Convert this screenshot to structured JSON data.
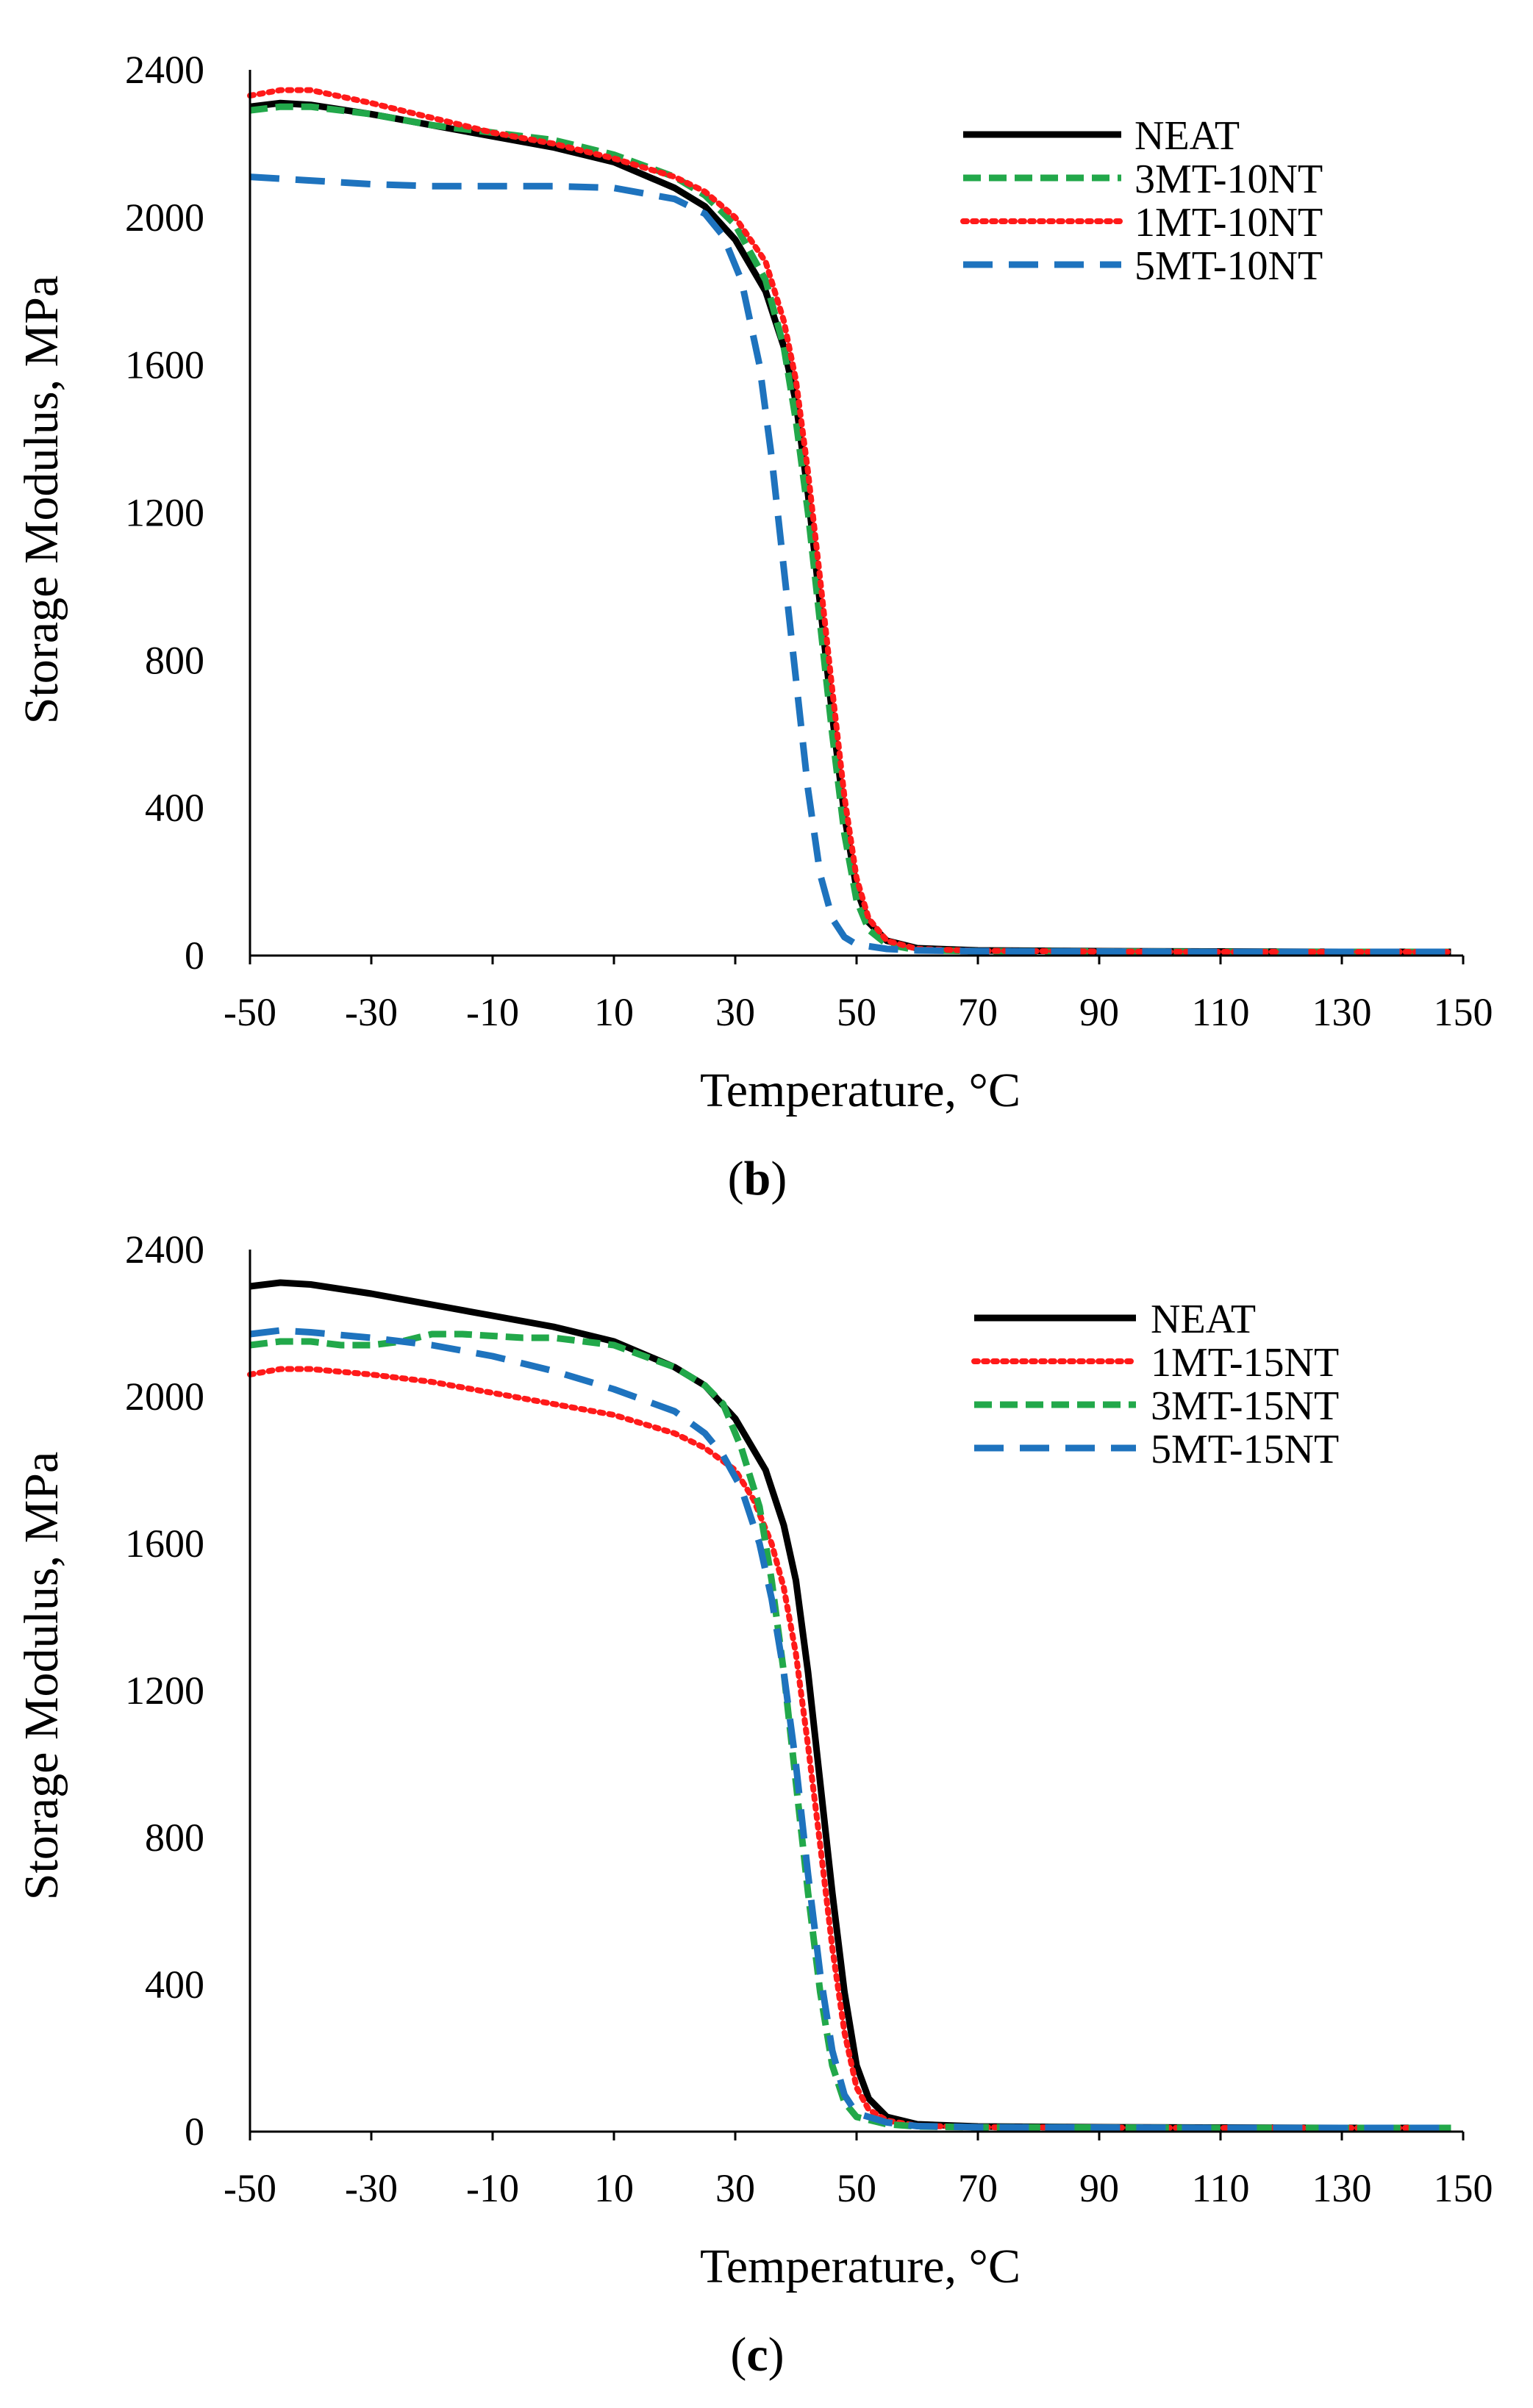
{
  "chart_data": [
    {
      "type": "line",
      "id": "b",
      "caption": {
        "open": "(",
        "letter": "b",
        "close": ")"
      },
      "xlabel": "Temperature, °C",
      "ylabel": "Storage Modulus, MPa",
      "xlim": [
        -50,
        150
      ],
      "ylim": [
        0,
        2400
      ],
      "xticks": [
        "-50",
        "-30",
        "-10",
        "10",
        "30",
        "50",
        "70",
        "90",
        "110",
        "130",
        "150"
      ],
      "yticks": [
        "0",
        "400",
        "800",
        "1200",
        "1600",
        "2000",
        "2400"
      ],
      "grid": false,
      "legend_position": "top-right",
      "series": [
        {
          "name": "NEAT",
          "color": "#000000",
          "style": "solid",
          "points": [
            [
              -50,
              2300
            ],
            [
              -45,
              2310
            ],
            [
              -40,
              2305
            ],
            [
              -30,
              2280
            ],
            [
              -20,
              2250
            ],
            [
              -10,
              2220
            ],
            [
              0,
              2190
            ],
            [
              10,
              2150
            ],
            [
              20,
              2080
            ],
            [
              25,
              2030
            ],
            [
              30,
              1940
            ],
            [
              35,
              1800
            ],
            [
              38,
              1650
            ],
            [
              40,
              1500
            ],
            [
              42,
              1250
            ],
            [
              44,
              950
            ],
            [
              46,
              650
            ],
            [
              48,
              380
            ],
            [
              50,
              180
            ],
            [
              52,
              90
            ],
            [
              55,
              40
            ],
            [
              60,
              20
            ],
            [
              70,
              14
            ],
            [
              90,
              12
            ],
            [
              110,
              11
            ],
            [
              130,
              10
            ],
            [
              148,
              10
            ]
          ]
        },
        {
          "name": "3MT-10NT",
          "color": "#22A84A",
          "style": "dashed",
          "points": [
            [
              -50,
              2290
            ],
            [
              -45,
              2300
            ],
            [
              -40,
              2300
            ],
            [
              -30,
              2280
            ],
            [
              -20,
              2250
            ],
            [
              -10,
              2230
            ],
            [
              0,
              2210
            ],
            [
              10,
              2170
            ],
            [
              20,
              2110
            ],
            [
              25,
              2060
            ],
            [
              30,
              1980
            ],
            [
              35,
              1830
            ],
            [
              38,
              1650
            ],
            [
              40,
              1450
            ],
            [
              42,
              1200
            ],
            [
              44,
              900
            ],
            [
              46,
              600
            ],
            [
              48,
              330
            ],
            [
              50,
              150
            ],
            [
              52,
              70
            ],
            [
              55,
              30
            ],
            [
              60,
              15
            ],
            [
              70,
              12
            ],
            [
              90,
              11
            ],
            [
              110,
              10
            ],
            [
              130,
              10
            ],
            [
              148,
              10
            ]
          ]
        },
        {
          "name": "1MT-10NT",
          "color": "#FF1A1A",
          "style": "dotted",
          "points": [
            [
              -50,
              2330
            ],
            [
              -45,
              2345
            ],
            [
              -40,
              2345
            ],
            [
              -30,
              2310
            ],
            [
              -20,
              2270
            ],
            [
              -10,
              2230
            ],
            [
              0,
              2200
            ],
            [
              10,
              2160
            ],
            [
              20,
              2110
            ],
            [
              25,
              2070
            ],
            [
              30,
              2000
            ],
            [
              35,
              1880
            ],
            [
              38,
              1720
            ],
            [
              40,
              1560
            ],
            [
              42,
              1310
            ],
            [
              44,
              1020
            ],
            [
              46,
              720
            ],
            [
              48,
              430
            ],
            [
              50,
              210
            ],
            [
              52,
              100
            ],
            [
              55,
              40
            ],
            [
              60,
              18
            ],
            [
              70,
              13
            ],
            [
              90,
              11
            ],
            [
              110,
              10
            ],
            [
              130,
              10
            ],
            [
              148,
              10
            ]
          ]
        },
        {
          "name": "5MT-10NT",
          "color": "#1E73BE",
          "style": "longdash",
          "points": [
            [
              -50,
              2110
            ],
            [
              -45,
              2105
            ],
            [
              -40,
              2100
            ],
            [
              -30,
              2090
            ],
            [
              -20,
              2085
            ],
            [
              -10,
              2085
            ],
            [
              0,
              2085
            ],
            [
              10,
              2080
            ],
            [
              20,
              2050
            ],
            [
              25,
              2010
            ],
            [
              28,
              1950
            ],
            [
              31,
              1830
            ],
            [
              34,
              1600
            ],
            [
              36,
              1350
            ],
            [
              38,
              1050
            ],
            [
              40,
              750
            ],
            [
              42,
              450
            ],
            [
              44,
              220
            ],
            [
              46,
              100
            ],
            [
              48,
              50
            ],
            [
              50,
              30
            ],
            [
              55,
              18
            ],
            [
              60,
              14
            ],
            [
              70,
              12
            ],
            [
              90,
              11
            ],
            [
              110,
              10
            ],
            [
              130,
              10
            ],
            [
              148,
              10
            ]
          ]
        }
      ]
    },
    {
      "type": "line",
      "id": "c",
      "caption": {
        "open": "(",
        "letter": "c",
        "close": ")"
      },
      "xlabel": "Temperature, °C",
      "ylabel": "Storage Modulus, MPa",
      "xlim": [
        -50,
        150
      ],
      "ylim": [
        0,
        2400
      ],
      "xticks": [
        "-50",
        "-30",
        "-10",
        "10",
        "30",
        "50",
        "70",
        "90",
        "110",
        "130",
        "150"
      ],
      "yticks": [
        "0",
        "400",
        "800",
        "1200",
        "1600",
        "2000",
        "2400"
      ],
      "grid": false,
      "legend_position": "top-right",
      "series": [
        {
          "name": "NEAT",
          "color": "#000000",
          "style": "solid",
          "points": [
            [
              -50,
              2300
            ],
            [
              -45,
              2310
            ],
            [
              -40,
              2305
            ],
            [
              -30,
              2280
            ],
            [
              -20,
              2250
            ],
            [
              -10,
              2220
            ],
            [
              0,
              2190
            ],
            [
              10,
              2150
            ],
            [
              20,
              2080
            ],
            [
              25,
              2030
            ],
            [
              30,
              1940
            ],
            [
              35,
              1800
            ],
            [
              38,
              1650
            ],
            [
              40,
              1500
            ],
            [
              42,
              1250
            ],
            [
              44,
              950
            ],
            [
              46,
              650
            ],
            [
              48,
              380
            ],
            [
              50,
              180
            ],
            [
              52,
              90
            ],
            [
              55,
              40
            ],
            [
              60,
              20
            ],
            [
              70,
              14
            ],
            [
              90,
              12
            ],
            [
              110,
              11
            ],
            [
              130,
              10
            ],
            [
              148,
              10
            ]
          ]
        },
        {
          "name": "1MT-15NT",
          "color": "#FF1A1A",
          "style": "dotted",
          "points": [
            [
              -50,
              2060
            ],
            [
              -45,
              2075
            ],
            [
              -40,
              2075
            ],
            [
              -30,
              2060
            ],
            [
              -20,
              2040
            ],
            [
              -10,
              2010
            ],
            [
              0,
              1980
            ],
            [
              10,
              1950
            ],
            [
              20,
              1900
            ],
            [
              25,
              1860
            ],
            [
              30,
              1800
            ],
            [
              33,
              1720
            ],
            [
              36,
              1600
            ],
            [
              38,
              1480
            ],
            [
              40,
              1300
            ],
            [
              42,
              1050
            ],
            [
              44,
              780
            ],
            [
              46,
              500
            ],
            [
              48,
              270
            ],
            [
              50,
              120
            ],
            [
              52,
              60
            ],
            [
              55,
              30
            ],
            [
              60,
              16
            ],
            [
              70,
              12
            ],
            [
              90,
              11
            ],
            [
              110,
              10
            ],
            [
              130,
              10
            ],
            [
              148,
              10
            ]
          ]
        },
        {
          "name": "3MT-15NT",
          "color": "#22A84A",
          "style": "dashed",
          "points": [
            [
              -50,
              2140
            ],
            [
              -45,
              2150
            ],
            [
              -40,
              2150
            ],
            [
              -35,
              2140
            ],
            [
              -30,
              2140
            ],
            [
              -25,
              2150
            ],
            [
              -20,
              2170
            ],
            [
              -15,
              2170
            ],
            [
              -10,
              2165
            ],
            [
              -5,
              2160
            ],
            [
              0,
              2160
            ],
            [
              10,
              2140
            ],
            [
              20,
              2080
            ],
            [
              25,
              2030
            ],
            [
              28,
              1980
            ],
            [
              31,
              1860
            ],
            [
              34,
              1700
            ],
            [
              36,
              1500
            ],
            [
              38,
              1250
            ],
            [
              40,
              950
            ],
            [
              42,
              650
            ],
            [
              44,
              380
            ],
            [
              46,
              180
            ],
            [
              48,
              80
            ],
            [
              50,
              40
            ],
            [
              55,
              20
            ],
            [
              60,
              14
            ],
            [
              70,
              12
            ],
            [
              90,
              11
            ],
            [
              110,
              10
            ],
            [
              130,
              10
            ],
            [
              148,
              10
            ]
          ]
        },
        {
          "name": "5MT-15NT",
          "color": "#1E73BE",
          "style": "longdash",
          "points": [
            [
              -50,
              2170
            ],
            [
              -45,
              2180
            ],
            [
              -40,
              2175
            ],
            [
              -30,
              2160
            ],
            [
              -20,
              2140
            ],
            [
              -10,
              2110
            ],
            [
              0,
              2070
            ],
            [
              10,
              2020
            ],
            [
              20,
              1960
            ],
            [
              25,
              1900
            ],
            [
              28,
              1840
            ],
            [
              31,
              1750
            ],
            [
              34,
              1600
            ],
            [
              36,
              1450
            ],
            [
              38,
              1250
            ],
            [
              40,
              1000
            ],
            [
              42,
              700
            ],
            [
              44,
              430
            ],
            [
              46,
              220
            ],
            [
              48,
              100
            ],
            [
              50,
              50
            ],
            [
              55,
              25
            ],
            [
              60,
              15
            ],
            [
              70,
              12
            ],
            [
              90,
              11
            ],
            [
              110,
              10
            ],
            [
              130,
              10
            ],
            [
              148,
              10
            ]
          ]
        }
      ]
    }
  ]
}
